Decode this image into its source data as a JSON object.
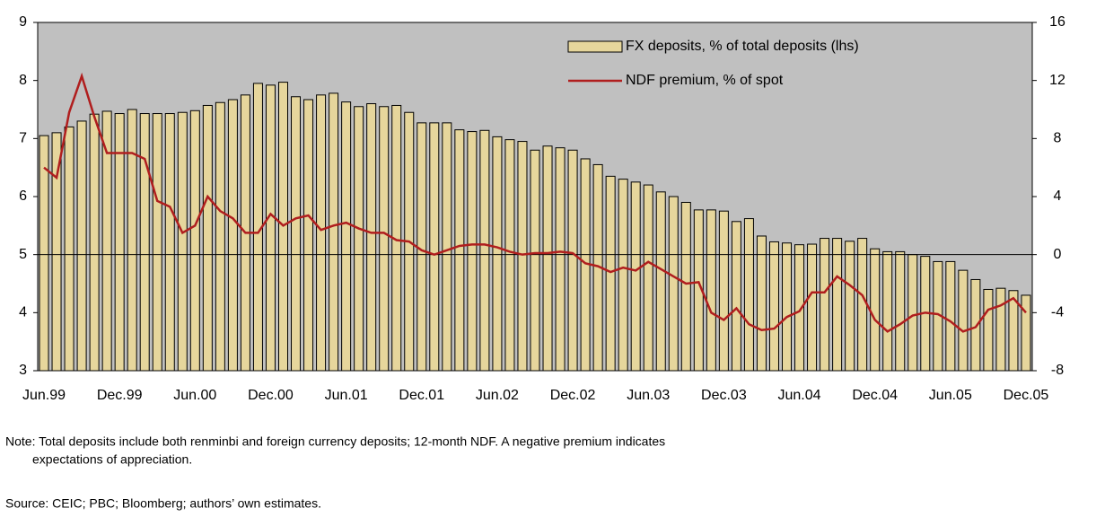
{
  "chart_data": {
    "type": "bar_line",
    "categories": [
      "Jun.99",
      null,
      null,
      null,
      null,
      null,
      "Dec.99",
      null,
      null,
      null,
      null,
      null,
      "Jun.00",
      null,
      null,
      null,
      null,
      null,
      "Dec.00",
      null,
      null,
      null,
      null,
      null,
      "Jun.01",
      null,
      null,
      null,
      null,
      null,
      "Dec.01",
      null,
      null,
      null,
      null,
      null,
      "Jun.02",
      null,
      null,
      null,
      null,
      null,
      "Dec.02",
      null,
      null,
      null,
      null,
      null,
      "Jun.03",
      null,
      null,
      null,
      null,
      null,
      "Dec.03",
      null,
      null,
      null,
      null,
      null,
      "Jun.04",
      null,
      null,
      null,
      null,
      null,
      "Dec.04",
      null,
      null,
      null,
      null,
      null,
      "Jun.05",
      null,
      null,
      null,
      null,
      null,
      "Dec.05"
    ],
    "series": [
      {
        "name": "FX deposits, % of total deposits (lhs)",
        "color": "#e6d69c",
        "kind": "bar",
        "values": [
          7.05,
          7.1,
          7.2,
          7.3,
          7.42,
          7.47,
          7.43,
          7.5,
          7.43,
          7.43,
          7.43,
          7.45,
          7.48,
          7.57,
          7.62,
          7.67,
          7.75,
          7.95,
          7.92,
          7.97,
          7.72,
          7.67,
          7.75,
          7.78,
          7.63,
          7.55,
          7.6,
          7.55,
          7.57,
          7.45,
          7.27,
          7.27,
          7.27,
          7.15,
          7.12,
          7.14,
          7.03,
          6.98,
          6.95,
          6.8,
          6.87,
          6.84,
          6.8,
          6.65,
          6.55,
          6.35,
          6.3,
          6.25,
          6.2,
          6.08,
          6.0,
          5.9,
          5.77,
          5.77,
          5.75,
          5.57,
          5.62,
          5.32,
          5.22,
          5.2,
          5.17,
          5.18,
          5.28,
          5.28,
          5.23,
          5.28,
          5.1,
          5.05,
          5.05,
          5.0,
          4.97,
          4.88,
          4.88,
          4.73,
          4.57,
          4.4,
          4.42,
          4.38,
          4.3
        ]
      },
      {
        "name": "NDF premium, % of spot",
        "color": "#b01e1e",
        "kind": "line",
        "axis": "y2",
        "values": [
          6,
          5.3,
          9.8,
          12.3,
          9.5,
          7,
          7,
          7,
          6.6,
          3.7,
          3.3,
          1.5,
          2,
          4,
          3,
          2.5,
          1.5,
          1.5,
          2.8,
          2,
          2.5,
          2.7,
          1.7,
          2,
          2.2,
          1.8,
          1.5,
          1.5,
          1,
          0.9,
          0.3,
          0,
          0.3,
          0.6,
          0.7,
          0.7,
          0.5,
          0.2,
          0,
          0.1,
          0.1,
          0.2,
          0.1,
          -0.6,
          -0.8,
          -1.2,
          -0.9,
          -1.1,
          -0.5,
          -1,
          -1.5,
          -2,
          -1.9,
          -4,
          -4.5,
          -3.7,
          -4.8,
          -5.2,
          -5.1,
          -4.3,
          -3.9,
          -2.6,
          -2.6,
          -1.5,
          -2.1,
          -2.8,
          -4.5,
          -5.3,
          -4.8,
          -4.2,
          -4.0,
          -4.1,
          -4.6,
          -5.3,
          -5.0,
          -3.8,
          -3.5,
          -3.0,
          -4.0
        ]
      }
    ],
    "ylim": [
      3,
      9
    ],
    "yticks": [
      3,
      4,
      5,
      6,
      7,
      8,
      9
    ],
    "y2lim": [
      -8,
      16
    ],
    "y2ticks": [
      -8,
      -4,
      0,
      4,
      8,
      12,
      16
    ],
    "note": [
      "Note: Total deposits include both renminbi and foreign currency deposits; 12-month NDF. A negative premium indicates",
      "expectations of appreciation."
    ],
    "source": "Source: CEIC; PBC; Bloomberg; authors’ own estimates."
  }
}
